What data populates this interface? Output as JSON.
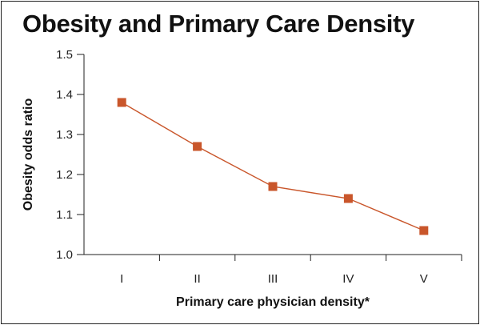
{
  "title": "Obesity and Primary Care Density",
  "chart_data": {
    "type": "line",
    "title": "Obesity and Primary Care Density",
    "xlabel": "Primary care physician density*",
    "ylabel": "Obesity odds ratio",
    "categories": [
      "I",
      "II",
      "III",
      "IV",
      "V"
    ],
    "series": [
      {
        "values": [
          1.38,
          1.27,
          1.17,
          1.14,
          1.06
        ]
      }
    ],
    "ylim": [
      1.0,
      1.5
    ],
    "yticks": [
      "1.0",
      "1.1",
      "1.2",
      "1.3",
      "1.4",
      "1.5"
    ],
    "grid": false,
    "marker": "square",
    "colors": {
      "series": "#C9562B",
      "axis": "#222222"
    }
  }
}
